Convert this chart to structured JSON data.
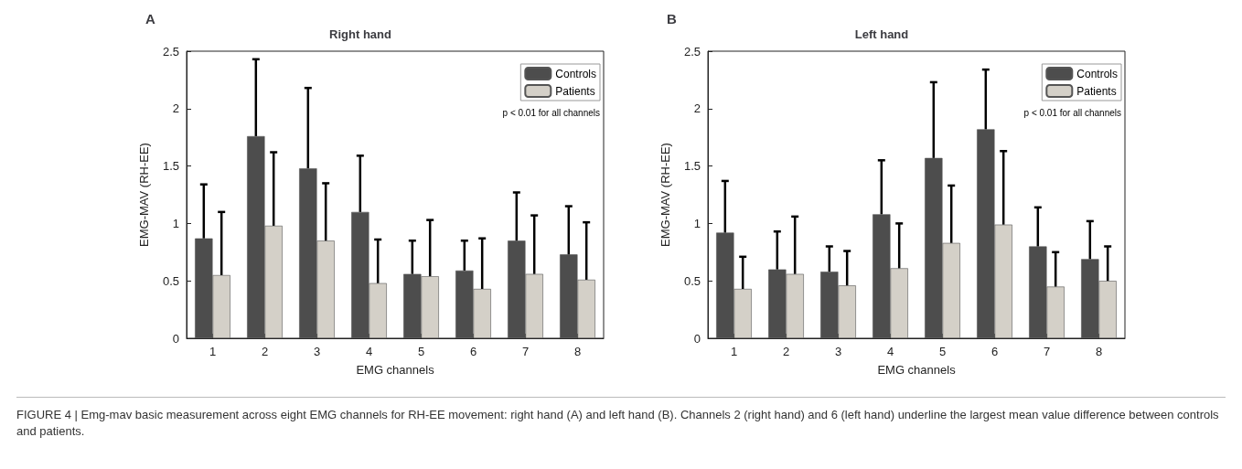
{
  "chart_data": [
    {
      "type": "bar",
      "title": "Right hand",
      "subtitle": "A",
      "xlabel": "EMG channels",
      "ylabel": "EMG-MAV (RH-EE)",
      "categories": [
        "1",
        "2",
        "3",
        "4",
        "5",
        "6",
        "7",
        "8"
      ],
      "series": [
        {
          "name": "Controls",
          "color": "#4d4d4d",
          "values": [
            0.87,
            1.76,
            1.48,
            1.1,
            0.56,
            0.59,
            0.85,
            0.73
          ],
          "errors": [
            [
              0.87,
              1.34
            ],
            [
              1.76,
              2.43
            ],
            [
              1.48,
              2.18
            ],
            [
              1.1,
              1.59
            ],
            [
              0.56,
              0.85
            ],
            [
              0.59,
              0.85
            ],
            [
              0.85,
              1.27
            ],
            [
              0.73,
              1.15
            ]
          ]
        },
        {
          "name": "Patients",
          "color": "#d4d0c8",
          "values": [
            0.55,
            0.98,
            0.85,
            0.48,
            0.54,
            0.43,
            0.56,
            0.51
          ],
          "errors": [
            [
              0.55,
              1.1
            ],
            [
              0.98,
              1.62
            ],
            [
              0.85,
              1.35
            ],
            [
              0.48,
              0.86
            ],
            [
              0.54,
              1.03
            ],
            [
              0.43,
              0.87
            ],
            [
              0.56,
              1.07
            ],
            [
              0.51,
              1.01
            ]
          ]
        }
      ],
      "ylim": [
        0,
        2.5
      ],
      "yticks": [
        0,
        0.5,
        1,
        1.5,
        2,
        2.5
      ],
      "grid": false,
      "legend": "top right",
      "annotations": [
        "p < 0.01 for all channels"
      ]
    },
    {
      "type": "bar",
      "title": "Left hand",
      "subtitle": "B",
      "xlabel": "EMG channels",
      "ylabel": "EMG-MAV (RH-EE)",
      "categories": [
        "1",
        "2",
        "3",
        "4",
        "5",
        "6",
        "7",
        "8"
      ],
      "series": [
        {
          "name": "Controls",
          "color": "#4d4d4d",
          "values": [
            0.92,
            0.6,
            0.58,
            1.08,
            1.57,
            1.82,
            0.8,
            0.69
          ],
          "errors": [
            [
              0.92,
              1.37
            ],
            [
              0.6,
              0.93
            ],
            [
              0.58,
              0.8
            ],
            [
              1.08,
              1.55
            ],
            [
              1.57,
              2.23
            ],
            [
              1.82,
              2.34
            ],
            [
              0.8,
              1.14
            ],
            [
              0.69,
              1.02
            ]
          ]
        },
        {
          "name": "Patients",
          "color": "#d4d0c8",
          "values": [
            0.43,
            0.56,
            0.46,
            0.61,
            0.83,
            0.99,
            0.45,
            0.5
          ],
          "errors": [
            [
              0.43,
              0.71
            ],
            [
              0.56,
              1.06
            ],
            [
              0.46,
              0.76
            ],
            [
              0.61,
              1.0
            ],
            [
              0.83,
              1.33
            ],
            [
              0.99,
              1.63
            ],
            [
              0.45,
              0.75
            ],
            [
              0.5,
              0.8
            ]
          ]
        }
      ],
      "ylim": [
        0,
        2.5
      ],
      "yticks": [
        0,
        0.5,
        1,
        1.5,
        2,
        2.5
      ],
      "grid": false,
      "legend": "top right",
      "annotations": [
        "p < 0.01 for all channels",
        "FIGURE 4 | Emg-mav basic measurement across eight EMG channels for RH-EE movement: right hand (A) and left hand (B). Channels 2 (right hand) and 6 (left hand) underline the largest mean value difference between controls and patients."
      ]
    }
  ]
}
